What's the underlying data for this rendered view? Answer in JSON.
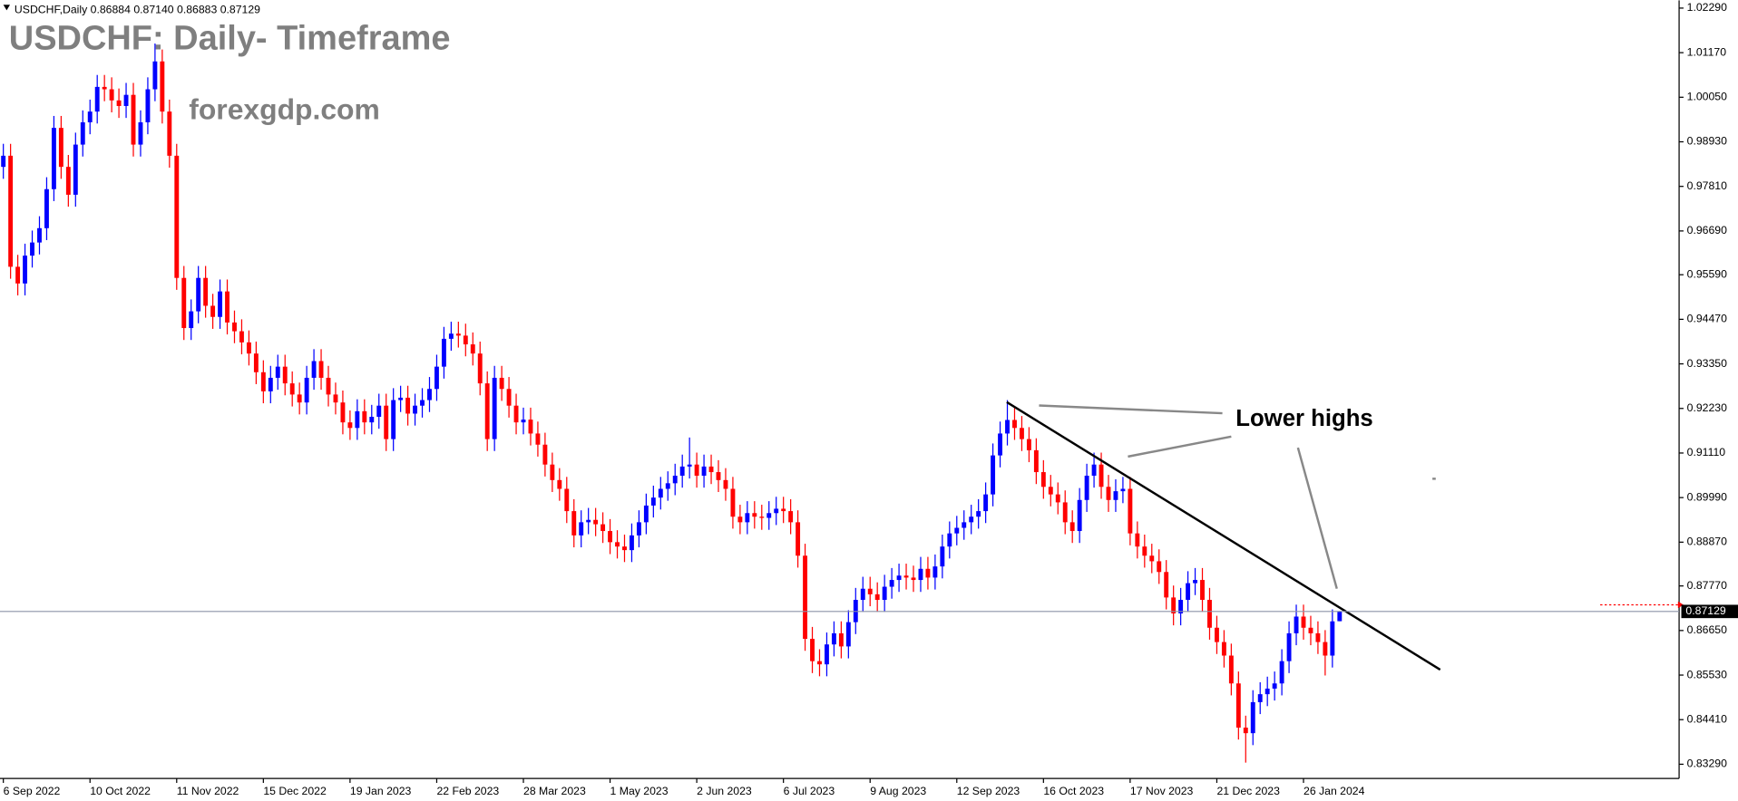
{
  "chart_data": {
    "type": "candlestick",
    "header": "USDCHF,Daily  0.86884 0.87140 0.86883 0.87129",
    "title": "USDCHF: Daily- Timeframe",
    "subtitle": "forexgdp.com",
    "annotation": "Lower highs",
    "up_color": "#0000ff",
    "down_color": "#ff0000",
    "last_price": 0.87129,
    "ylim": [
      0.8296,
      1.02485
    ],
    "yticks": [
      {
        "value": 1.0229,
        "label": "1.02290"
      },
      {
        "value": 1.0117,
        "label": "1.01170"
      },
      {
        "value": 1.0005,
        "label": "1.00050"
      },
      {
        "value": 0.9893,
        "label": "0.98930"
      },
      {
        "value": 0.9781,
        "label": "0.97810"
      },
      {
        "value": 0.9669,
        "label": "0.96690"
      },
      {
        "value": 0.9559,
        "label": "0.95590"
      },
      {
        "value": 0.9447,
        "label": "0.94470"
      },
      {
        "value": 0.9335,
        "label": "0.93350"
      },
      {
        "value": 0.9223,
        "label": "0.92230"
      },
      {
        "value": 0.9111,
        "label": "0.91110"
      },
      {
        "value": 0.8999,
        "label": "0.89990"
      },
      {
        "value": 0.8887,
        "label": "0.88870"
      },
      {
        "value": 0.8777,
        "label": "0.87770"
      },
      {
        "value": 0.8665,
        "label": "0.86650"
      },
      {
        "value": 0.8553,
        "label": "0.85530"
      },
      {
        "value": 0.8441,
        "label": "0.84410"
      },
      {
        "value": 0.8329,
        "label": "0.83290"
      }
    ],
    "categories": [
      "6 Sep 2022",
      null,
      null,
      null,
      null,
      null,
      null,
      null,
      null,
      null,
      null,
      null,
      "10 Oct 2022",
      null,
      null,
      null,
      null,
      null,
      null,
      null,
      null,
      null,
      null,
      null,
      "11 Nov 2022",
      null,
      null,
      null,
      null,
      null,
      null,
      null,
      null,
      null,
      null,
      null,
      "15 Dec 2022",
      null,
      null,
      null,
      null,
      null,
      null,
      null,
      null,
      null,
      null,
      null,
      "19 Jan 2023",
      null,
      null,
      null,
      null,
      null,
      null,
      null,
      null,
      null,
      null,
      null,
      "22 Feb 2023",
      null,
      null,
      null,
      null,
      null,
      null,
      null,
      null,
      null,
      null,
      null,
      "28 Mar 2023",
      null,
      null,
      null,
      null,
      null,
      null,
      null,
      null,
      null,
      null,
      null,
      "1 May 2023",
      null,
      null,
      null,
      null,
      null,
      null,
      null,
      null,
      null,
      null,
      null,
      "2 Jun 2023",
      null,
      null,
      null,
      null,
      null,
      null,
      null,
      null,
      null,
      null,
      null,
      "6 Jul 2023",
      null,
      null,
      null,
      null,
      null,
      null,
      null,
      null,
      null,
      null,
      null,
      "9 Aug 2023",
      null,
      null,
      null,
      null,
      null,
      null,
      null,
      null,
      null,
      null,
      null,
      "12 Sep 2023",
      null,
      null,
      null,
      null,
      null,
      null,
      null,
      null,
      null,
      null,
      null,
      "16 Oct 2023",
      null,
      null,
      null,
      null,
      null,
      null,
      null,
      null,
      null,
      null,
      null,
      "17 Nov 2023",
      null,
      null,
      null,
      null,
      null,
      null,
      null,
      null,
      null,
      null,
      null,
      "21 Dec 2023",
      null,
      null,
      null,
      null,
      null,
      null,
      null,
      null,
      null,
      null,
      null,
      "26 Jan 2024",
      null,
      null,
      null,
      null,
      null
    ],
    "open": [
      0.983,
      0.9858,
      0.9579,
      0.9537,
      0.9607,
      0.964,
      0.9676,
      0.9774,
      0.9928,
      0.983,
      0.976,
      0.9886,
      0.9942,
      0.9969,
      1.0031,
      1.0025,
      0.9997,
      0.9983,
      1.0011,
      0.9886,
      0.9942,
      1.0025,
      1.0095,
      0.9969,
      0.9858,
      0.9551,
      0.9425,
      0.9467,
      0.9551,
      0.9481,
      0.9453,
      0.9517,
      0.9439,
      0.9417,
      0.9389,
      0.9361,
      0.9314,
      0.9266,
      0.93,
      0.9328,
      0.9286,
      0.9258,
      0.9238,
      0.93,
      0.9342,
      0.93,
      0.9258,
      0.9238,
      0.9188,
      0.9174,
      0.9216,
      0.9188,
      0.9202,
      0.923,
      0.9146,
      0.9244,
      0.925,
      0.921,
      0.923,
      0.9244,
      0.9272,
      0.9328,
      0.9398,
      0.9411,
      0.9406,
      0.9384,
      0.9361,
      0.9286,
      0.9146,
      0.93,
      0.9272,
      0.923,
      0.9188,
      0.9195,
      0.916,
      0.9132,
      0.9082,
      0.9043,
      0.9021,
      0.8965,
      0.8904,
      0.8937,
      0.8943,
      0.8932,
      0.8915,
      0.8887,
      0.8876,
      0.8867,
      0.8904,
      0.8937,
      0.8979,
      0.8999,
      0.9021,
      0.9035,
      0.9054,
      0.9077,
      0.9082,
      0.9054,
      0.9077,
      0.9063,
      0.9043,
      0.9021,
      0.8951,
      0.8937,
      0.896,
      0.8951,
      0.8948,
      0.896,
      0.8971,
      0.8965,
      0.8937,
      0.8853,
      0.8644,
      0.8588,
      0.858,
      0.863,
      0.8658,
      0.8625,
      0.8686,
      0.8742,
      0.877,
      0.8756,
      0.8742,
      0.8775,
      0.8792,
      0.8803,
      0.8798,
      0.8792,
      0.882,
      0.8798,
      0.8826,
      0.8876,
      0.8909,
      0.8923,
      0.8937,
      0.8951,
      0.8965,
      0.9007,
      0.9105,
      0.916,
      0.9194,
      0.9174,
      0.9146,
      0.9118,
      0.9063,
      0.9026,
      0.9007,
      0.8987,
      0.8937,
      0.8915,
      0.8993,
      0.9054,
      0.9082,
      0.9026,
      0.8993,
      0.9015,
      0.9021,
      0.8909,
      0.8876,
      0.8853,
      0.8839,
      0.8812,
      0.8748,
      0.8708,
      0.8742,
      0.8784,
      0.8792,
      0.8742,
      0.8672,
      0.8636,
      0.8602,
      0.8532,
      0.8421,
      0.8407,
      0.8485,
      0.8505,
      0.8519,
      0.8532,
      0.8588,
      0.8658,
      0.87,
      0.8672,
      0.8658,
      0.8636,
      0.8602,
      0.86884
    ],
    "high": [
      0.9888,
      0.9888,
      0.9609,
      0.9637,
      0.967,
      0.9706,
      0.9804,
      0.9958,
      0.9958,
      0.986,
      0.9916,
      0.9972,
      0.9999,
      1.0061,
      1.0061,
      1.0055,
      1.0027,
      1.0041,
      1.0041,
      0.9972,
      1.0055,
      1.014,
      1.0125,
      0.9999,
      0.9888,
      0.9581,
      0.9497,
      0.9581,
      0.9581,
      0.9511,
      0.9547,
      0.9547,
      0.9469,
      0.9447,
      0.9419,
      0.9391,
      0.9344,
      0.933,
      0.9358,
      0.9358,
      0.9316,
      0.9288,
      0.933,
      0.9372,
      0.9372,
      0.933,
      0.9288,
      0.9268,
      0.9218,
      0.9246,
      0.9246,
      0.9232,
      0.926,
      0.926,
      0.9274,
      0.928,
      0.928,
      0.926,
      0.9274,
      0.9302,
      0.9358,
      0.9428,
      0.9441,
      0.9441,
      0.9436,
      0.9414,
      0.9391,
      0.9316,
      0.933,
      0.933,
      0.9302,
      0.926,
      0.9225,
      0.9225,
      0.919,
      0.9162,
      0.9112,
      0.9073,
      0.9051,
      0.8995,
      0.8967,
      0.8973,
      0.8973,
      0.8962,
      0.8945,
      0.8917,
      0.8906,
      0.8934,
      0.8967,
      0.9009,
      0.9029,
      0.9051,
      0.9065,
      0.9084,
      0.9107,
      0.915,
      0.9112,
      0.9107,
      0.9107,
      0.9093,
      0.9073,
      0.9051,
      0.8981,
      0.899,
      0.899,
      0.8981,
      0.899,
      0.9001,
      0.9001,
      0.8995,
      0.8967,
      0.8883,
      0.8674,
      0.8618,
      0.866,
      0.8688,
      0.8688,
      0.8716,
      0.8772,
      0.88,
      0.88,
      0.8786,
      0.8805,
      0.8822,
      0.8833,
      0.8833,
      0.8828,
      0.885,
      0.885,
      0.8856,
      0.8906,
      0.8939,
      0.8953,
      0.8967,
      0.8981,
      0.8995,
      0.9037,
      0.9135,
      0.919,
      0.9244,
      0.9224,
      0.9204,
      0.9176,
      0.9148,
      0.9093,
      0.9056,
      0.9037,
      0.9017,
      0.8967,
      0.9023,
      0.9084,
      0.9112,
      0.9112,
      0.9056,
      0.9045,
      0.9051,
      0.9051,
      0.8939,
      0.8906,
      0.8883,
      0.8869,
      0.8842,
      0.8778,
      0.8772,
      0.8814,
      0.8822,
      0.8822,
      0.8772,
      0.8702,
      0.8666,
      0.8632,
      0.8562,
      0.8451,
      0.8515,
      0.8535,
      0.8549,
      0.8562,
      0.8618,
      0.8688,
      0.873,
      0.873,
      0.8702,
      0.8688,
      0.8666,
      0.8718,
      0.8714
    ],
    "low": [
      0.98,
      0.9549,
      0.9507,
      0.9507,
      0.9577,
      0.961,
      0.9646,
      0.9744,
      0.98,
      0.973,
      0.973,
      0.9856,
      0.9912,
      0.9939,
      0.9995,
      0.9967,
      0.9953,
      0.9953,
      0.9856,
      0.9856,
      0.9912,
      0.9995,
      0.9939,
      0.9828,
      0.9521,
      0.9395,
      0.9395,
      0.9437,
      0.9451,
      0.9423,
      0.9423,
      0.9409,
      0.9387,
      0.9359,
      0.9331,
      0.9284,
      0.9236,
      0.9236,
      0.927,
      0.9256,
      0.9228,
      0.9208,
      0.9208,
      0.927,
      0.927,
      0.9228,
      0.9208,
      0.9158,
      0.9144,
      0.9144,
      0.9158,
      0.9158,
      0.9172,
      0.9116,
      0.9116,
      0.9214,
      0.918,
      0.918,
      0.92,
      0.9214,
      0.9242,
      0.9298,
      0.9368,
      0.9376,
      0.9354,
      0.9331,
      0.9256,
      0.9116,
      0.9116,
      0.9242,
      0.92,
      0.9158,
      0.9158,
      0.913,
      0.9102,
      0.9052,
      0.9013,
      0.8991,
      0.8935,
      0.8874,
      0.8874,
      0.8907,
      0.8902,
      0.8885,
      0.8857,
      0.8846,
      0.8837,
      0.8837,
      0.8874,
      0.8907,
      0.8949,
      0.8969,
      0.8991,
      0.9005,
      0.9024,
      0.9047,
      0.9024,
      0.9024,
      0.9033,
      0.9013,
      0.8991,
      0.8921,
      0.8907,
      0.8907,
      0.8921,
      0.8918,
      0.8918,
      0.893,
      0.8935,
      0.8907,
      0.8823,
      0.8614,
      0.8558,
      0.855,
      0.855,
      0.86,
      0.8595,
      0.8595,
      0.8656,
      0.8712,
      0.8726,
      0.8712,
      0.8712,
      0.8745,
      0.8762,
      0.8768,
      0.8762,
      0.8762,
      0.8768,
      0.8768,
      0.8796,
      0.8846,
      0.8879,
      0.8893,
      0.8907,
      0.8921,
      0.8935,
      0.8977,
      0.9075,
      0.913,
      0.9144,
      0.9116,
      0.9088,
      0.9033,
      0.8996,
      0.8977,
      0.8957,
      0.8907,
      0.8885,
      0.8885,
      0.8963,
      0.9024,
      0.8996,
      0.8963,
      0.8963,
      0.8985,
      0.8879,
      0.8846,
      0.8823,
      0.8809,
      0.8782,
      0.8718,
      0.8678,
      0.8678,
      0.8712,
      0.8754,
      0.8712,
      0.8642,
      0.8606,
      0.8572,
      0.8502,
      0.8391,
      0.8333,
      0.8377,
      0.8455,
      0.8475,
      0.8489,
      0.8502,
      0.8558,
      0.8628,
      0.8642,
      0.8628,
      0.8606,
      0.8552,
      0.8572,
      0.86883
    ],
    "close": [
      0.9858,
      0.9579,
      0.9537,
      0.9607,
      0.964,
      0.9676,
      0.9774,
      0.9928,
      0.983,
      0.976,
      0.9886,
      0.9942,
      0.9969,
      1.0031,
      1.0025,
      0.9997,
      0.9983,
      1.0011,
      0.9886,
      0.9942,
      1.0025,
      1.0095,
      0.9969,
      0.9858,
      0.9551,
      0.9425,
      0.9467,
      0.9551,
      0.9481,
      0.9453,
      0.9517,
      0.9439,
      0.9417,
      0.9389,
      0.9361,
      0.9314,
      0.9266,
      0.93,
      0.9328,
      0.9286,
      0.9258,
      0.9238,
      0.93,
      0.9342,
      0.93,
      0.9258,
      0.9238,
      0.9188,
      0.9174,
      0.9216,
      0.9188,
      0.9202,
      0.923,
      0.9146,
      0.9244,
      0.925,
      0.921,
      0.923,
      0.9244,
      0.9272,
      0.9328,
      0.9398,
      0.9411,
      0.9406,
      0.9384,
      0.9361,
      0.9286,
      0.9146,
      0.93,
      0.9272,
      0.923,
      0.9188,
      0.9195,
      0.916,
      0.9132,
      0.9082,
      0.9043,
      0.9021,
      0.8965,
      0.8904,
      0.8937,
      0.8943,
      0.8932,
      0.8915,
      0.8887,
      0.8876,
      0.8867,
      0.8904,
      0.8937,
      0.8979,
      0.8999,
      0.9021,
      0.9035,
      0.9054,
      0.9077,
      0.9082,
      0.9054,
      0.9077,
      0.9063,
      0.9043,
      0.9021,
      0.8951,
      0.8937,
      0.896,
      0.8951,
      0.8948,
      0.896,
      0.8971,
      0.8965,
      0.8937,
      0.8853,
      0.8644,
      0.8588,
      0.858,
      0.863,
      0.8658,
      0.8625,
      0.8686,
      0.8742,
      0.877,
      0.8756,
      0.8742,
      0.8775,
      0.8792,
      0.8803,
      0.8798,
      0.8792,
      0.882,
      0.8798,
      0.8826,
      0.8876,
      0.8909,
      0.8923,
      0.8937,
      0.8951,
      0.8965,
      0.9007,
      0.9105,
      0.916,
      0.9194,
      0.9174,
      0.9146,
      0.9118,
      0.9063,
      0.9026,
      0.9007,
      0.8987,
      0.8937,
      0.8915,
      0.8993,
      0.9054,
      0.9082,
      0.9026,
      0.8993,
      0.9015,
      0.9021,
      0.8909,
      0.8876,
      0.8853,
      0.8839,
      0.8812,
      0.8748,
      0.8708,
      0.8742,
      0.8784,
      0.8792,
      0.8742,
      0.8672,
      0.8636,
      0.8602,
      0.8532,
      0.8421,
      0.8407,
      0.8485,
      0.8505,
      0.8519,
      0.8532,
      0.8588,
      0.8658,
      0.87,
      0.8672,
      0.8658,
      0.8636,
      0.8602,
      0.8688,
      0.87129
    ]
  }
}
